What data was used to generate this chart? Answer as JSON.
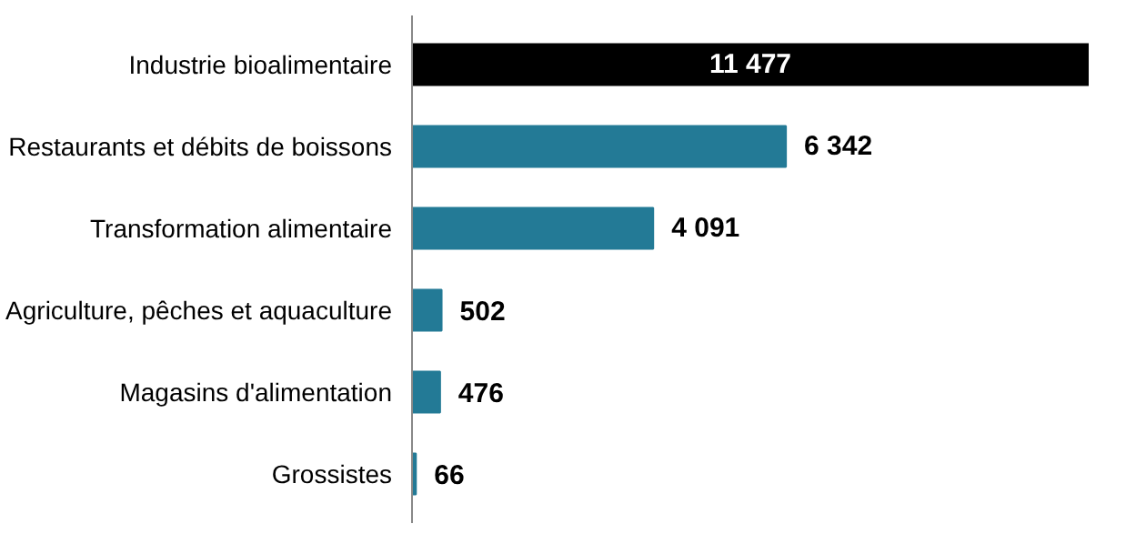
{
  "chart_data": {
    "type": "bar",
    "orientation": "horizontal",
    "categories": [
      "Industrie bioalimentaire",
      "Restaurants et débits de boissons",
      "Transformation alimentaire",
      "Agriculture, pêches et aquaculture",
      "Magasins d'alimentation",
      "Grossistes"
    ],
    "values": [
      11477,
      6342,
      4091,
      502,
      476,
      66
    ],
    "value_labels": [
      "11 477",
      "6 342",
      "4 091",
      "502",
      "476",
      "66"
    ],
    "colors": [
      "#000000",
      "#237a96",
      "#237a96",
      "#237a96",
      "#237a96",
      "#237a96"
    ],
    "grid": false
  }
}
